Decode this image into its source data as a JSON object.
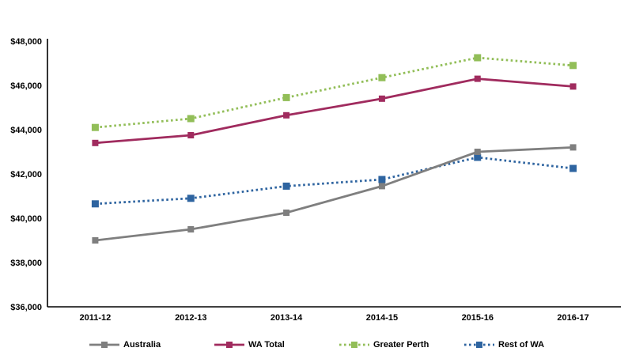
{
  "chart_data": {
    "type": "line",
    "title": "",
    "xlabel": "",
    "ylabel": "",
    "categories": [
      "2011-12",
      "2012-13",
      "2013-14",
      "2014-15",
      "2015-16",
      "2016-17"
    ],
    "series": [
      {
        "name": "Australia",
        "color": "#7F7F7F",
        "style": "solid",
        "marker": "square",
        "values": [
          39000,
          39500,
          40250,
          41450,
          43000,
          43200
        ]
      },
      {
        "name": "WA Total",
        "color": "#A02B5E",
        "style": "solid",
        "marker": "square",
        "values": [
          43400,
          43750,
          44650,
          45400,
          46300,
          45950
        ]
      },
      {
        "name": "Greater Perth",
        "color": "#92BE58",
        "style": "dotted",
        "marker": "square",
        "values": [
          44100,
          44500,
          45450,
          46350,
          47250,
          46900
        ]
      },
      {
        "name": "Rest of WA",
        "color": "#2E64A0",
        "style": "dotted",
        "marker": "square",
        "values": [
          40650,
          40900,
          41450,
          41750,
          42750,
          42250
        ]
      }
    ],
    "ylim": [
      36000,
      48000
    ],
    "y_tick_step": 2000,
    "y_tick_labels": [
      "$36,000",
      "$38,000",
      "$40,000",
      "$42,000",
      "$44,000",
      "$46,000",
      "$48,000"
    ],
    "grid": false,
    "legend_position": "bottom",
    "axis_color": "#000000",
    "background_color": "#FFFFFF"
  }
}
